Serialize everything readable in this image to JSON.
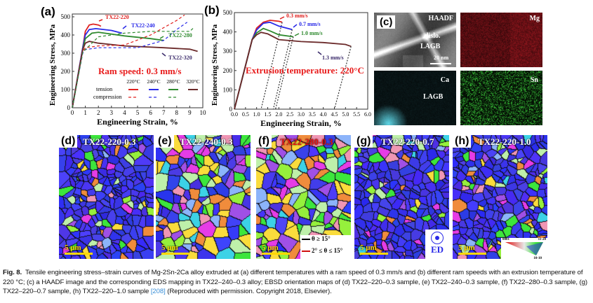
{
  "chart_data": [
    {
      "panel": "(a)",
      "type": "line",
      "xlabel": "Engineering Strain, %",
      "ylabel": "Engineering Stress, MPa",
      "xlim": [
        0,
        10
      ],
      "ylim": [
        0,
        500
      ],
      "xticks": [
        "0",
        "1",
        "2",
        "3",
        "4",
        "5",
        "6",
        "7",
        "8",
        "9",
        "10"
      ],
      "yticks": [
        "0",
        "100",
        "200",
        "300",
        "400",
        "500"
      ],
      "annotation": "Ram speed: 0.3 mm/s",
      "legend": {
        "columns": [
          "220°C",
          "240°C",
          "280°C",
          "320°C"
        ],
        "rows": [
          "tension",
          "compression"
        ],
        "placement": "bottom-right"
      },
      "series": [
        {
          "name": "TX22-220",
          "mode": "tension",
          "color": "#e0201e",
          "points": [
            [
              0,
              0
            ],
            [
              0.8,
              330
            ],
            [
              1.0,
              420
            ],
            [
              1.3,
              455
            ],
            [
              1.6,
              460
            ],
            [
              2.0,
              455
            ],
            [
              2.2,
              448
            ]
          ]
        },
        {
          "name": "TX22-240",
          "mode": "tension",
          "color": "#2a2ae8",
          "points": [
            [
              0,
              0
            ],
            [
              0.8,
              330
            ],
            [
              1.0,
              400
            ],
            [
              1.3,
              430
            ],
            [
              1.8,
              435
            ],
            [
              3.0,
              425
            ],
            [
              3.8,
              410
            ]
          ]
        },
        {
          "name": "TX22-280",
          "mode": "tension",
          "color": "#2f8a2f",
          "points": [
            [
              0,
              0
            ],
            [
              0.8,
              320
            ],
            [
              1.0,
              380
            ],
            [
              1.5,
              410
            ],
            [
              2.0,
              415
            ],
            [
              4.0,
              395
            ],
            [
              6.0,
              380
            ],
            [
              7.0,
              370
            ]
          ]
        },
        {
          "name": "TX22-320",
          "mode": "tension",
          "color": "#6b2a2a",
          "points": [
            [
              0,
              0
            ],
            [
              0.8,
              320
            ],
            [
              1.0,
              355
            ],
            [
              1.3,
              365
            ],
            [
              2.0,
              355
            ],
            [
              4.0,
              340
            ],
            [
              7.0,
              330
            ],
            [
              9.0,
              322
            ],
            [
              9.6,
              310
            ]
          ]
        },
        {
          "mode": "compression",
          "color": "#e0201e",
          "points": [
            [
              0,
              0
            ],
            [
              0.8,
              310
            ],
            [
              1.0,
              330
            ],
            [
              2.0,
              340
            ],
            [
              4.0,
              345
            ],
            [
              6.0,
              400
            ],
            [
              8.0,
              480
            ],
            [
              8.6,
              510
            ]
          ]
        },
        {
          "mode": "compression",
          "color": "#2a2ae8",
          "points": [
            [
              0,
              0
            ],
            [
              0.8,
              300
            ],
            [
              1.0,
              320
            ],
            [
              2.0,
              330
            ],
            [
              5.0,
              330
            ],
            [
              7.0,
              370
            ],
            [
              8.0,
              430
            ],
            [
              8.8,
              470
            ]
          ]
        },
        {
          "mode": "compression",
          "color": "#2f8a2f",
          "points": [
            [
              0,
              0
            ],
            [
              0.8,
              305
            ],
            [
              1.0,
              320
            ],
            [
              2.0,
              390
            ],
            [
              4.0,
              410
            ],
            [
              6.0,
              420
            ],
            [
              8.0,
              420
            ],
            [
              9.0,
              420
            ],
            [
              9.3,
              440
            ]
          ]
        }
      ],
      "labels": [
        {
          "text": "TX22-220",
          "color": "#e0201e"
        },
        {
          "text": "TX22-240",
          "color": "#2a2ae8"
        },
        {
          "text": "TX22-280",
          "color": "#2f8a2f"
        },
        {
          "text": "TX22-320",
          "color": "#3a2a6a"
        }
      ]
    },
    {
      "panel": "(b)",
      "type": "line",
      "xlabel": "Engineering Strain, %",
      "ylabel": "Engineering Stress, MPa",
      "xlim": [
        0,
        6
      ],
      "ylim": [
        0,
        500
      ],
      "xticks": [
        "0.0",
        "0.5",
        "1.0",
        "1.5",
        "2.0",
        "2.5",
        "3.0",
        "3.5",
        "4.0",
        "4.5",
        "5.0",
        "5.5",
        "6.0"
      ],
      "yticks": [
        "0",
        "100",
        "200",
        "300",
        "400",
        "500"
      ],
      "annotation": "Extrusion temperature: 220°C",
      "series": [
        {
          "name": "0.3 mm/s",
          "color": "#e0201e",
          "points": [
            [
              0,
              0
            ],
            [
              0.8,
              360
            ],
            [
              1.0,
              420
            ],
            [
              1.3,
              450
            ],
            [
              1.6,
              460
            ],
            [
              2.0,
              455
            ],
            [
              2.15,
              450
            ]
          ],
          "unload": [
            [
              2.15,
              450
            ],
            [
              1.2,
              0
            ]
          ]
        },
        {
          "name": "0.7 mm/s",
          "color": "#2a2ae8",
          "points": [
            [
              0,
              0
            ],
            [
              0.8,
              360
            ],
            [
              1.0,
              410
            ],
            [
              1.3,
              445
            ],
            [
              1.6,
              450
            ],
            [
              2.0,
              430
            ],
            [
              2.6,
              412
            ]
          ],
          "unload": [
            [
              2.6,
              412
            ],
            [
              1.75,
              0
            ]
          ]
        },
        {
          "name": "1.0 mm/s",
          "color": "#2f8a2f",
          "points": [
            [
              0,
              0
            ],
            [
              0.8,
              360
            ],
            [
              1.0,
              395
            ],
            [
              1.3,
              418
            ],
            [
              1.6,
              405
            ],
            [
              2.0,
              385
            ],
            [
              2.65,
              375
            ]
          ],
          "unload": [
            [
              2.65,
              375
            ],
            [
              1.85,
              0
            ]
          ]
        },
        {
          "name": "1.3 mm/s",
          "color": "#6b2a2a",
          "labelColor": "#3a2a6a",
          "points": [
            [
              0,
              0
            ],
            [
              0.8,
              360
            ],
            [
              1.0,
              385
            ],
            [
              1.2,
              398
            ],
            [
              1.5,
              390
            ],
            [
              2.0,
              360
            ],
            [
              3.0,
              350
            ],
            [
              4.0,
              345
            ],
            [
              5.0,
              335
            ],
            [
              5.25,
              325
            ]
          ],
          "unload": [
            [
              5.25,
              325
            ],
            [
              4.5,
              0
            ]
          ]
        }
      ]
    }
  ],
  "panel_c": {
    "label": "(c)",
    "haadf": {
      "title": "HAADF",
      "annotations": [
        "dislo.",
        "LAGB"
      ],
      "scale": "20 nm"
    },
    "maps": [
      {
        "element": "Mg",
        "color": "#c0202a"
      },
      {
        "element": "Ca",
        "color": "#5fd8e8",
        "annotation": "LAGB"
      },
      {
        "element": "Sn",
        "color": "#3ed83e"
      }
    ]
  },
  "ebsd": [
    {
      "label": "(d)",
      "name": "TX22-220-0.3",
      "blue_fraction": 0.75
    },
    {
      "label": "(e)",
      "name": "TX22-240-0.3",
      "blue_fraction": 0.35
    },
    {
      "label": "(f)",
      "name": "TX22-280-0.3",
      "blue_fraction": 0.2
    },
    {
      "label": "(g)",
      "name": "TX22-220-0.7",
      "blue_fraction": 0.8
    },
    {
      "label": "(h)",
      "name": "TX22-220-1.0",
      "blue_fraction": 0.7
    }
  ],
  "ebsd_scale": "5 μm",
  "boundary_legend": [
    "θ ≥ 15°",
    "2° ≤ θ ≤ 15°"
  ],
  "ed_label": "ED",
  "ipf_legend": [
    "0001",
    "11-20",
    "10-10"
  ],
  "caption": {
    "fig": "Fig. 8.",
    "text": "Tensile engineering stress–strain curves of Mg-2Sn-2Ca alloy extruded at (a) different temperatures with a ram speed of 0.3 mm/s and (b) different ram speeds with an extrusion temperature of 220 °C; (c) a HAADF image and the corresponding EDS mapping in TX22–240–0.3 alloy; EBSD orientation maps of (d) TX22–220–0.3 sample, (e) TX22–240–0.3 sample, (f) TX22–280–0.3 sample, (g) TX22–220–0.7 sample, (h) TX22–220–1.0 sample",
    "ref": "[208]",
    "tail": "(Reproduced with permission. Copyright 2018, Elsevier)."
  }
}
